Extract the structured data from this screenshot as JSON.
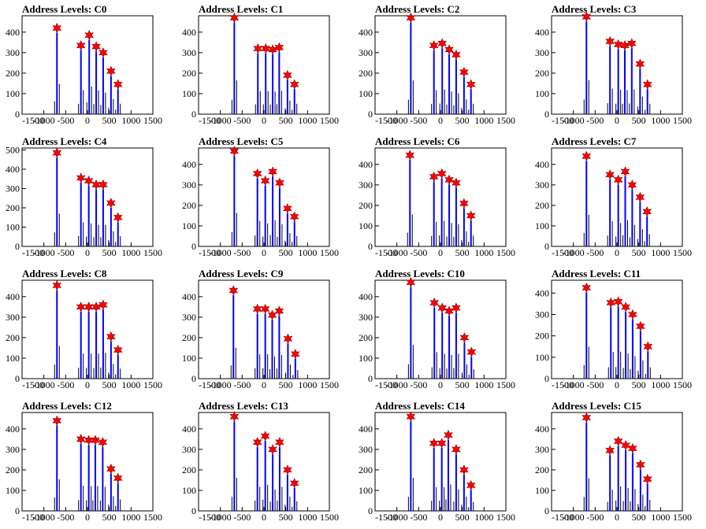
{
  "chart_data": [
    {
      "type": "bar",
      "title": "Address Levels: C0",
      "xlim": [
        -1500,
        1500
      ],
      "ylim": [
        0,
        480
      ],
      "xticks": [
        -1500,
        -1000,
        -500,
        0,
        500,
        1000,
        1500
      ],
      "yticks": [
        0,
        100,
        200,
        300,
        400
      ],
      "peaks": [
        {
          "x": -700,
          "y": 420
        },
        {
          "x": -150,
          "y": 335
        },
        {
          "x": 40,
          "y": 385
        },
        {
          "x": 200,
          "y": 330
        },
        {
          "x": 360,
          "y": 300
        },
        {
          "x": 540,
          "y": 210
        },
        {
          "x": 700,
          "y": 145
        }
      ]
    },
    {
      "type": "bar",
      "title": "Address Levels: C1",
      "xlim": [
        -1500,
        1500
      ],
      "ylim": [
        0,
        480
      ],
      "xticks": [
        -1500,
        -1000,
        -500,
        0,
        500,
        1000,
        1500
      ],
      "yticks": [
        0,
        100,
        200,
        300,
        400
      ],
      "peaks": [
        {
          "x": -680,
          "y": 470
        },
        {
          "x": -140,
          "y": 320
        },
        {
          "x": 40,
          "y": 320
        },
        {
          "x": 200,
          "y": 315
        },
        {
          "x": 350,
          "y": 325
        },
        {
          "x": 540,
          "y": 190
        },
        {
          "x": 700,
          "y": 145
        }
      ]
    },
    {
      "type": "bar",
      "title": "Address Levels: C2",
      "xlim": [
        -1500,
        1500
      ],
      "ylim": [
        0,
        480
      ],
      "xticks": [
        -1500,
        -1000,
        -500,
        0,
        500,
        1000,
        1500
      ],
      "yticks": [
        0,
        100,
        200,
        300,
        400
      ],
      "peaks": [
        {
          "x": -680,
          "y": 470
        },
        {
          "x": -150,
          "y": 335
        },
        {
          "x": 40,
          "y": 345
        },
        {
          "x": 200,
          "y": 315
        },
        {
          "x": 360,
          "y": 290
        },
        {
          "x": 540,
          "y": 205
        },
        {
          "x": 700,
          "y": 145
        }
      ]
    },
    {
      "type": "bar",
      "title": "Address Levels: C3",
      "xlim": [
        -1500,
        1500
      ],
      "ylim": [
        0,
        480
      ],
      "xticks": [
        -1500,
        -1000,
        -500,
        0,
        500,
        1000,
        1500
      ],
      "yticks": [
        0,
        100,
        200,
        300,
        400
      ],
      "peaks": [
        {
          "x": -700,
          "y": 475
        },
        {
          "x": -160,
          "y": 355
        },
        {
          "x": 30,
          "y": 340
        },
        {
          "x": 180,
          "y": 335
        },
        {
          "x": 340,
          "y": 345
        },
        {
          "x": 530,
          "y": 245
        },
        {
          "x": 700,
          "y": 145
        }
      ]
    },
    {
      "type": "bar",
      "title": "Address Levels: C4",
      "xlim": [
        -1500,
        1500
      ],
      "ylim": [
        0,
        510
      ],
      "xticks": [
        -1500,
        -1000,
        -500,
        0,
        500,
        1000,
        1500
      ],
      "yticks": [
        0,
        100,
        200,
        300,
        400,
        500
      ],
      "peaks": [
        {
          "x": -700,
          "y": 485
        },
        {
          "x": -150,
          "y": 355
        },
        {
          "x": 30,
          "y": 340
        },
        {
          "x": 200,
          "y": 320
        },
        {
          "x": 360,
          "y": 320
        },
        {
          "x": 540,
          "y": 225
        },
        {
          "x": 700,
          "y": 150
        }
      ]
    },
    {
      "type": "bar",
      "title": "Address Levels: C5",
      "xlim": [
        -1500,
        1500
      ],
      "ylim": [
        0,
        480
      ],
      "xticks": [
        -1500,
        -1000,
        -500,
        0,
        500,
        1000,
        1500
      ],
      "yticks": [
        0,
        100,
        200,
        300,
        400
      ],
      "peaks": [
        {
          "x": -680,
          "y": 465
        },
        {
          "x": -150,
          "y": 355
        },
        {
          "x": 30,
          "y": 320
        },
        {
          "x": 200,
          "y": 365
        },
        {
          "x": 360,
          "y": 310
        },
        {
          "x": 540,
          "y": 185
        },
        {
          "x": 700,
          "y": 145
        }
      ]
    },
    {
      "type": "bar",
      "title": "Address Levels: C6",
      "xlim": [
        -1500,
        1500
      ],
      "ylim": [
        0,
        480
      ],
      "xticks": [
        -1500,
        -1000,
        -500,
        0,
        500,
        1000,
        1500
      ],
      "yticks": [
        0,
        100,
        200,
        300,
        400
      ],
      "peaks": [
        {
          "x": -700,
          "y": 445
        },
        {
          "x": -150,
          "y": 340
        },
        {
          "x": 30,
          "y": 355
        },
        {
          "x": 200,
          "y": 325
        },
        {
          "x": 360,
          "y": 310
        },
        {
          "x": 540,
          "y": 210
        },
        {
          "x": 700,
          "y": 150
        }
      ]
    },
    {
      "type": "bar",
      "title": "Address Levels: C7",
      "xlim": [
        -1500,
        1500
      ],
      "ylim": [
        0,
        480
      ],
      "xticks": [
        -1500,
        -1000,
        -500,
        0,
        500,
        1000,
        1500
      ],
      "yticks": [
        0,
        100,
        200,
        300,
        400
      ],
      "peaks": [
        {
          "x": -700,
          "y": 440
        },
        {
          "x": -160,
          "y": 350
        },
        {
          "x": 30,
          "y": 325
        },
        {
          "x": 190,
          "y": 365
        },
        {
          "x": 350,
          "y": 300
        },
        {
          "x": 530,
          "y": 240
        },
        {
          "x": 690,
          "y": 170
        }
      ]
    },
    {
      "type": "bar",
      "title": "Address Levels: C8",
      "xlim": [
        -1500,
        1500
      ],
      "ylim": [
        0,
        480
      ],
      "xticks": [
        -1500,
        -1000,
        -500,
        0,
        500,
        1000,
        1500
      ],
      "yticks": [
        0,
        100,
        200,
        300,
        400
      ],
      "peaks": [
        {
          "x": -700,
          "y": 455
        },
        {
          "x": -150,
          "y": 350
        },
        {
          "x": 30,
          "y": 350
        },
        {
          "x": 200,
          "y": 350
        },
        {
          "x": 360,
          "y": 360
        },
        {
          "x": 540,
          "y": 205
        },
        {
          "x": 700,
          "y": 140
        }
      ]
    },
    {
      "type": "bar",
      "title": "Address Levels: C9",
      "xlim": [
        -1500,
        1500
      ],
      "ylim": [
        0,
        480
      ],
      "xticks": [
        -1500,
        -1000,
        -500,
        0,
        500,
        1000,
        1500
      ],
      "yticks": [
        0,
        100,
        200,
        300,
        400
      ],
      "peaks": [
        {
          "x": -700,
          "y": 430
        },
        {
          "x": -150,
          "y": 340
        },
        {
          "x": 30,
          "y": 340
        },
        {
          "x": 190,
          "y": 310
        },
        {
          "x": 350,
          "y": 330
        },
        {
          "x": 550,
          "y": 195
        },
        {
          "x": 720,
          "y": 120
        }
      ]
    },
    {
      "type": "bar",
      "title": "Address Levels: C10",
      "xlim": [
        -1500,
        1500
      ],
      "ylim": [
        0,
        480
      ],
      "xticks": [
        -1500,
        -1000,
        -500,
        0,
        500,
        1000,
        1500
      ],
      "yticks": [
        0,
        100,
        200,
        300,
        400
      ],
      "peaks": [
        {
          "x": -680,
          "y": 470
        },
        {
          "x": -140,
          "y": 370
        },
        {
          "x": 40,
          "y": 345
        },
        {
          "x": 200,
          "y": 330
        },
        {
          "x": 360,
          "y": 345
        },
        {
          "x": 550,
          "y": 200
        },
        {
          "x": 710,
          "y": 130
        }
      ]
    },
    {
      "type": "bar",
      "title": "Address Levels: C11",
      "xlim": [
        -1500,
        1500
      ],
      "ylim": [
        0,
        460
      ],
      "xticks": [
        -1500,
        -1000,
        -500,
        0,
        500,
        1000,
        1500
      ],
      "yticks": [
        0,
        100,
        200,
        300,
        400
      ],
      "peaks": [
        {
          "x": -700,
          "y": 425
        },
        {
          "x": -140,
          "y": 355
        },
        {
          "x": 30,
          "y": 360
        },
        {
          "x": 200,
          "y": 335
        },
        {
          "x": 360,
          "y": 300
        },
        {
          "x": 540,
          "y": 245
        },
        {
          "x": 710,
          "y": 150
        }
      ]
    },
    {
      "type": "bar",
      "title": "Address Levels: C12",
      "xlim": [
        -1500,
        1500
      ],
      "ylim": [
        0,
        480
      ],
      "xticks": [
        -1500,
        -1000,
        -500,
        0,
        500,
        1000,
        1500
      ],
      "yticks": [
        0,
        100,
        200,
        300,
        400
      ],
      "peaks": [
        {
          "x": -700,
          "y": 440
        },
        {
          "x": -150,
          "y": 350
        },
        {
          "x": 30,
          "y": 345
        },
        {
          "x": 180,
          "y": 345
        },
        {
          "x": 350,
          "y": 335
        },
        {
          "x": 540,
          "y": 205
        },
        {
          "x": 700,
          "y": 160
        }
      ]
    },
    {
      "type": "bar",
      "title": "Address Levels: C13",
      "xlim": [
        -1500,
        1500
      ],
      "ylim": [
        0,
        480
      ],
      "xticks": [
        -1500,
        -1000,
        -500,
        0,
        500,
        1000,
        1500
      ],
      "yticks": [
        0,
        100,
        200,
        300,
        400
      ],
      "peaks": [
        {
          "x": -680,
          "y": 460
        },
        {
          "x": -150,
          "y": 335
        },
        {
          "x": 30,
          "y": 365
        },
        {
          "x": 200,
          "y": 300
        },
        {
          "x": 360,
          "y": 335
        },
        {
          "x": 540,
          "y": 200
        },
        {
          "x": 700,
          "y": 135
        }
      ]
    },
    {
      "type": "bar",
      "title": "Address Levels: C14",
      "xlim": [
        -1500,
        1500
      ],
      "ylim": [
        0,
        480
      ],
      "xticks": [
        -1500,
        -1000,
        -500,
        0,
        500,
        1000,
        1500
      ],
      "yticks": [
        0,
        100,
        200,
        300,
        400
      ],
      "peaks": [
        {
          "x": -680,
          "y": 460
        },
        {
          "x": -150,
          "y": 330
        },
        {
          "x": 30,
          "y": 330
        },
        {
          "x": 180,
          "y": 370
        },
        {
          "x": 360,
          "y": 300
        },
        {
          "x": 540,
          "y": 200
        },
        {
          "x": 700,
          "y": 125
        }
      ]
    },
    {
      "type": "bar",
      "title": "Address Levels: C15",
      "xlim": [
        -1500,
        1500
      ],
      "ylim": [
        0,
        480
      ],
      "xticks": [
        -1500,
        -1000,
        -500,
        0,
        500,
        1000,
        1500
      ],
      "yticks": [
        0,
        100,
        200,
        300,
        400
      ],
      "peaks": [
        {
          "x": -700,
          "y": 455
        },
        {
          "x": -160,
          "y": 295
        },
        {
          "x": 30,
          "y": 340
        },
        {
          "x": 200,
          "y": 320
        },
        {
          "x": 360,
          "y": 305
        },
        {
          "x": 540,
          "y": 225
        },
        {
          "x": 700,
          "y": 155
        }
      ]
    }
  ],
  "colors": {
    "bar": "#0000ff",
    "outline": "#000000",
    "marker": "#ff0000",
    "marker_edge": "#8b0000"
  }
}
